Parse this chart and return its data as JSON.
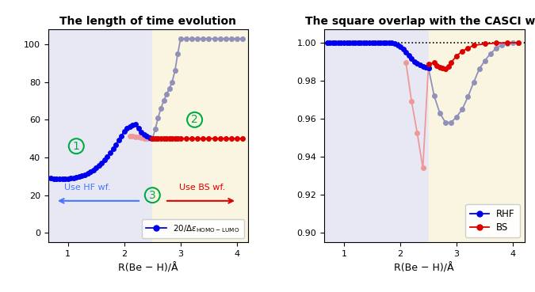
{
  "title1": "The length of time evolution",
  "title2": "The square overlap with the CASCI wf.",
  "xlabel": "R(Be − H)/Å",
  "bg_blue": "#e8e8f5",
  "bg_yellow": "#faf5e0",
  "boundary_x": 2.5,
  "xlim": [
    0.65,
    4.2
  ],
  "ylim1": [
    -5,
    108
  ],
  "ylim2": [
    0.895,
    1.007
  ],
  "yticks1": [
    0,
    20,
    40,
    60,
    80,
    100
  ],
  "yticks2": [
    0.9,
    0.92,
    0.94,
    0.96,
    0.98,
    1.0
  ],
  "xticks": [
    1,
    2,
    3,
    4
  ],
  "label_hf": "Use HF wf.",
  "label_bs": "Use BS wf.",
  "label_rhf": "RHF",
  "label_bs_leg": "BS",
  "annot1": "1",
  "annot2": "2",
  "annot3": "3",
  "plot1_blue_x": [
    0.7,
    0.75,
    0.8,
    0.85,
    0.9,
    0.95,
    1.0,
    1.05,
    1.1,
    1.15,
    1.2,
    1.25,
    1.3,
    1.35,
    1.4,
    1.45,
    1.5,
    1.55,
    1.6,
    1.65,
    1.7,
    1.75,
    1.8,
    1.85,
    1.9,
    1.95,
    2.0,
    2.05,
    2.1,
    2.15,
    2.2,
    2.25,
    2.3,
    2.35,
    2.4,
    2.45,
    2.5
  ],
  "plot1_blue_y": [
    29.0,
    28.8,
    28.7,
    28.6,
    28.6,
    28.6,
    28.7,
    28.9,
    29.1,
    29.4,
    29.8,
    30.3,
    30.9,
    31.6,
    32.4,
    33.4,
    34.5,
    35.8,
    37.2,
    38.8,
    40.5,
    42.4,
    44.5,
    46.8,
    49.2,
    51.5,
    54.0,
    55.5,
    56.5,
    57.2,
    57.5,
    55.5,
    53.5,
    52.0,
    51.2,
    50.5,
    50.0
  ],
  "plot1_violet_x": [
    2.5,
    2.55,
    2.6,
    2.65,
    2.7,
    2.75,
    2.8,
    2.85,
    2.9,
    2.95,
    3.0,
    3.1,
    3.2,
    3.3,
    3.4,
    3.5,
    3.6,
    3.7,
    3.8,
    3.9,
    4.0,
    4.1
  ],
  "plot1_violet_y": [
    50.0,
    55.0,
    61.0,
    66.0,
    70.0,
    73.5,
    76.5,
    80.0,
    86.0,
    95.0,
    103.0,
    103.0,
    103.0,
    103.0,
    103.0,
    103.0,
    103.0,
    103.0,
    103.0,
    103.0,
    103.0,
    103.0
  ],
  "plot1_red_x": [
    2.1,
    2.15,
    2.2,
    2.25,
    2.3,
    2.35,
    2.4,
    2.45,
    2.5,
    2.55,
    2.6,
    2.65,
    2.7,
    2.75,
    2.8,
    2.85,
    2.9,
    2.95,
    3.0,
    3.1,
    3.2,
    3.3,
    3.4,
    3.5,
    3.6,
    3.7,
    3.8,
    3.9,
    4.0,
    4.1
  ],
  "plot1_red_y": [
    51.5,
    51.2,
    51.0,
    50.7,
    50.4,
    50.2,
    50.1,
    50.05,
    50.0,
    50.0,
    50.0,
    50.0,
    50.0,
    50.0,
    50.0,
    50.0,
    50.0,
    50.0,
    50.0,
    50.0,
    50.0,
    50.0,
    50.0,
    50.0,
    50.0,
    50.0,
    50.0,
    50.0,
    50.0,
    50.0
  ],
  "plot2_blue_x": [
    0.7,
    0.75,
    0.8,
    0.85,
    0.9,
    0.95,
    1.0,
    1.05,
    1.1,
    1.15,
    1.2,
    1.25,
    1.3,
    1.35,
    1.4,
    1.45,
    1.5,
    1.55,
    1.6,
    1.65,
    1.7,
    1.75,
    1.8,
    1.85,
    1.9,
    1.95,
    2.0,
    2.05,
    2.1,
    2.15,
    2.2,
    2.25,
    2.3,
    2.35,
    2.4,
    2.45,
    2.5
  ],
  "plot2_blue_y": [
    1.0,
    1.0,
    1.0,
    1.0,
    1.0,
    1.0,
    1.0,
    1.0,
    1.0,
    1.0,
    1.0,
    1.0,
    1.0,
    1.0,
    1.0,
    1.0,
    1.0,
    1.0,
    1.0,
    1.0,
    1.0,
    1.0,
    1.0,
    0.9998,
    0.9994,
    0.9988,
    0.9978,
    0.9965,
    0.995,
    0.9932,
    0.9915,
    0.99,
    0.989,
    0.9882,
    0.9875,
    0.987,
    0.9865
  ],
  "plot2_violet_x": [
    2.5,
    2.6,
    2.7,
    2.8,
    2.9,
    3.0,
    3.1,
    3.2,
    3.3,
    3.4,
    3.5,
    3.6,
    3.7,
    3.8,
    3.9,
    4.0,
    4.1
  ],
  "plot2_violet_y": [
    0.9865,
    0.972,
    0.963,
    0.958,
    0.958,
    0.961,
    0.965,
    0.9715,
    0.979,
    0.986,
    0.9905,
    0.9942,
    0.997,
    0.9988,
    0.9995,
    0.9998,
    0.9999
  ],
  "plot2_red_x": [
    2.1,
    2.2,
    2.3,
    2.4,
    2.5,
    2.6,
    2.65,
    2.7,
    2.75,
    2.8,
    2.85,
    2.9,
    3.0,
    3.1,
    3.2,
    3.3,
    3.5,
    3.7,
    3.9,
    4.1
  ],
  "plot2_red_y": [
    0.9895,
    0.969,
    0.9525,
    0.934,
    0.9885,
    0.9895,
    0.988,
    0.987,
    0.9865,
    0.986,
    0.9875,
    0.9895,
    0.993,
    0.9955,
    0.997,
    0.9985,
    0.9993,
    0.9997,
    0.9999,
    0.9999
  ],
  "color_blue": "#0000ee",
  "color_red": "#dd0000",
  "color_violet_light": "#9090bb",
  "color_red_light": "#ee9999",
  "color_green": "#00aa44",
  "color_hf_arrow": "#4477ff",
  "color_bs_arrow": "#dd0000"
}
